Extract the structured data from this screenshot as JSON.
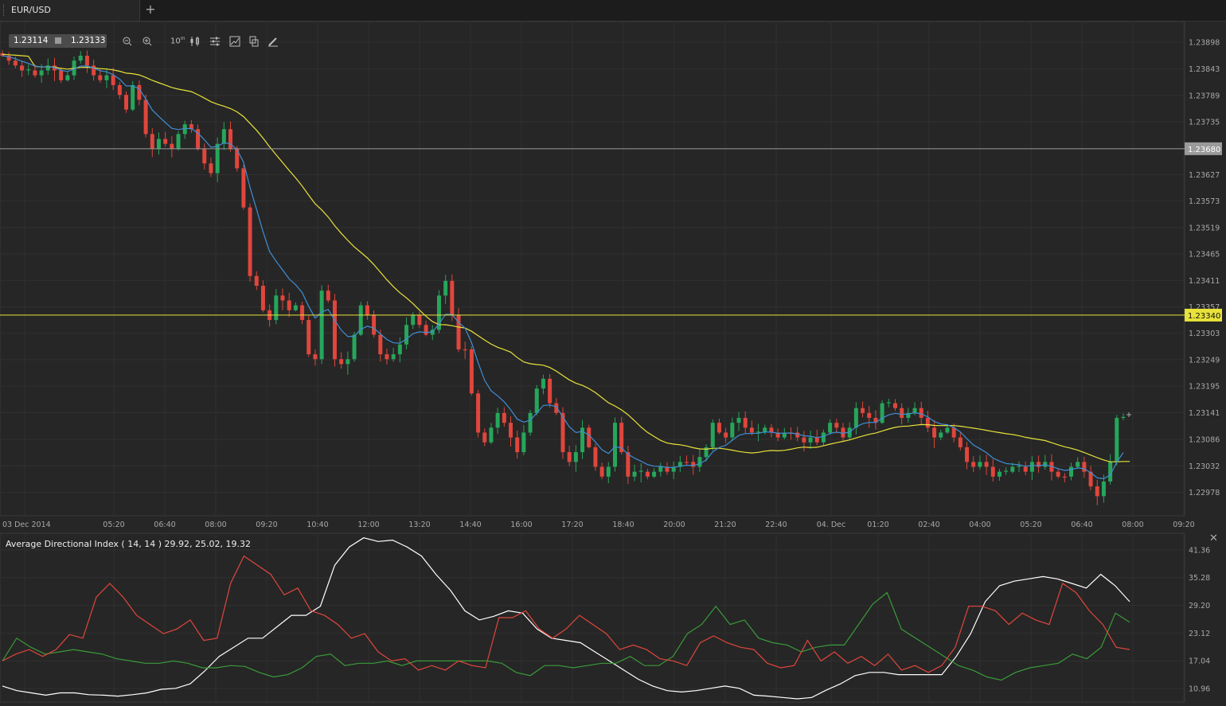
{
  "tab": {
    "label": "EUR/USD",
    "add": "+"
  },
  "quote": {
    "bid": "1.23114",
    "ask": "1.23133"
  },
  "toolbar": {
    "timeframe": "10",
    "timeframe_unit": "m"
  },
  "colors": {
    "bull": "#26a65b",
    "bear": "#e0463c",
    "ma_slow": "#e8e23a",
    "ma_fast": "#3f8fd6",
    "hline1": "#9a9a9a",
    "hline2": "#e8e23a",
    "adx": "#ffffff",
    "di_plus": "#3a9a3a",
    "di_minus": "#e0463c"
  },
  "chart_data": [
    {
      "type": "candlestick",
      "symbol": "EUR/USD",
      "x_ticks": [
        "03 Dec 2014",
        "05:20",
        "06:40",
        "08:00",
        "09:20",
        "10:40",
        "12:00",
        "13:20",
        "14:40",
        "16:00",
        "17:20",
        "18:40",
        "20:00",
        "21:20",
        "22:40",
        "04. Dec",
        "01:20",
        "02:40",
        "04:00",
        "05:20",
        "06:40",
        "08:00",
        "09:20"
      ],
      "y_ticks": [
        "1.23898",
        "1.23843",
        "1.23789",
        "1.23735",
        "1.23627",
        "1.23573",
        "1.23519",
        "1.23465",
        "1.23411",
        "1.23357",
        "1.23303",
        "1.23249",
        "1.23195",
        "1.23141",
        "1.23086",
        "1.23032",
        "1.22978"
      ],
      "ylim": [
        1.2293,
        1.2394
      ],
      "horizontal_lines": [
        {
          "value": "1.23680",
          "color": "gray"
        },
        {
          "value": "1.23340",
          "color": "yellow"
        }
      ],
      "close_path": [
        1.2387,
        1.2386,
        1.2385,
        1.2384,
        1.2384,
        1.2383,
        1.2384,
        1.2385,
        1.2384,
        1.2382,
        1.2383,
        1.2386,
        1.2387,
        1.2385,
        1.2383,
        1.2382,
        1.2383,
        1.2381,
        1.2379,
        1.2376,
        1.2381,
        1.2378,
        1.2371,
        1.2368,
        1.237,
        1.2369,
        1.2368,
        1.2371,
        1.2373,
        1.2372,
        1.2368,
        1.2365,
        1.2363,
        1.2369,
        1.2372,
        1.2368,
        1.2364,
        1.2356,
        1.2342,
        1.234,
        1.2335,
        1.2333,
        1.2338,
        1.2337,
        1.2335,
        1.2336,
        1.2333,
        1.2326,
        1.2325,
        1.2339,
        1.2337,
        1.2325,
        1.2324,
        1.2325,
        1.233,
        1.2336,
        1.2334,
        1.233,
        1.2326,
        1.2325,
        1.2326,
        1.2328,
        1.2332,
        1.2334,
        1.2332,
        1.233,
        1.2331,
        1.2338,
        1.2341,
        1.2334,
        1.2327,
        1.2327,
        1.2318,
        1.231,
        1.2308,
        1.2311,
        1.2314,
        1.2312,
        1.2309,
        1.2306,
        1.231,
        1.2314,
        1.2319,
        1.2321,
        1.2316,
        1.2314,
        1.2306,
        1.2304,
        1.2306,
        1.2311,
        1.2307,
        1.2303,
        1.2301,
        1.2303,
        1.2312,
        1.2306,
        1.2301,
        1.2302,
        1.2302,
        1.2301,
        1.2302,
        1.2303,
        1.2302,
        1.2303,
        1.2304,
        1.2304,
        1.2303,
        1.2305,
        1.2307,
        1.2312,
        1.231,
        1.2309,
        1.2312,
        1.2313,
        1.2311,
        1.231,
        1.231,
        1.2311,
        1.231,
        1.2309,
        1.231,
        1.231,
        1.2309,
        1.2308,
        1.2309,
        1.2308,
        1.231,
        1.2312,
        1.2311,
        1.2309,
        1.2311,
        1.2315,
        1.2314,
        1.2313,
        1.2312,
        1.2316,
        1.2316,
        1.2315,
        1.2313,
        1.2314,
        1.2315,
        1.2313,
        1.2311,
        1.2309,
        1.231,
        1.2311,
        1.2309,
        1.2307,
        1.2304,
        1.2303,
        1.2304,
        1.2303,
        1.2301,
        1.2302,
        1.2302,
        1.2303,
        1.2303,
        1.2302,
        1.2304,
        1.2303,
        1.2304,
        1.2302,
        1.2301,
        1.2301,
        1.2303,
        1.2304,
        1.2302,
        1.2299,
        1.2297,
        1.23,
        1.2304,
        1.2313,
        1.2313
      ]
    },
    {
      "type": "line",
      "title": "Average Directional Index ( 14, 14 ) 29.92, 25.02, 19.32",
      "y_ticks": [
        "41.36",
        "35.28",
        "29.20",
        "23.12",
        "17.04",
        "10.96"
      ],
      "ylim": [
        8,
        45
      ],
      "series": [
        {
          "values": [
            11.5,
            10.5,
            10,
            9.5,
            10,
            10,
            9.6,
            9.5,
            9.3,
            9.6,
            10,
            10.8,
            11,
            12,
            14.8,
            18,
            20,
            22,
            22,
            24.5,
            27,
            27,
            29,
            38,
            42,
            44,
            43.2,
            43.5,
            42,
            40,
            36,
            32.5,
            28,
            26,
            26.8,
            28,
            27.5,
            24,
            22,
            21.5,
            21,
            19,
            17,
            15,
            13,
            11.5,
            10.5,
            10.2,
            10.5,
            11,
            11.5,
            11,
            9.5,
            9.3,
            9,
            8.7,
            9,
            10.6,
            12,
            13.8,
            14.5,
            14.5,
            14,
            14,
            14,
            14,
            18,
            23,
            30,
            33.5,
            34.5,
            35,
            35.5,
            35,
            34,
            33,
            36,
            33.5,
            30
          ]
        },
        {
          "values": [
            17,
            22,
            20,
            18.5,
            19,
            19.5,
            19,
            18.5,
            17.5,
            17,
            16.5,
            16.5,
            17,
            16.5,
            15.5,
            15.5,
            16,
            15.8,
            14.5,
            13.5,
            14,
            15.5,
            18,
            18.5,
            16,
            16.5,
            16.5,
            17,
            16,
            17,
            17,
            17,
            17,
            17,
            17,
            16.5,
            14.5,
            13.8,
            16,
            16,
            15.5,
            16,
            16.5,
            16.5,
            18,
            16,
            16,
            18,
            23,
            25,
            29,
            25,
            26,
            22,
            21,
            20.5,
            19,
            20,
            20.5,
            20.5,
            25,
            29.5,
            32,
            24,
            22,
            20,
            18,
            16,
            15,
            13.5,
            12.8,
            14.5,
            15.5,
            16,
            16.5,
            18.5,
            17.5,
            20,
            27.5,
            25.5
          ]
        },
        {
          "values": [
            17,
            18.5,
            19.5,
            18,
            19.5,
            22.8,
            22,
            31,
            34,
            31,
            27,
            25,
            23,
            24,
            26,
            21.5,
            22,
            34,
            40,
            38,
            36,
            31.5,
            33,
            28,
            27,
            25,
            22,
            23,
            19,
            17,
            17.5,
            15,
            16,
            15,
            17,
            16,
            15.5,
            26.5,
            26.5,
            28,
            24,
            22,
            24,
            27,
            25,
            23,
            19.5,
            20.5,
            19.5,
            17.5,
            17,
            16,
            21,
            22.5,
            21,
            20,
            19.5,
            16.5,
            15.5,
            16,
            21.5,
            17,
            19,
            16.5,
            18,
            16,
            18.5,
            15,
            16,
            14.5,
            16,
            20,
            29,
            29,
            28,
            25,
            27.5,
            26,
            25,
            34,
            32,
            28,
            25,
            20,
            19.5
          ]
        }
      ]
    }
  ]
}
